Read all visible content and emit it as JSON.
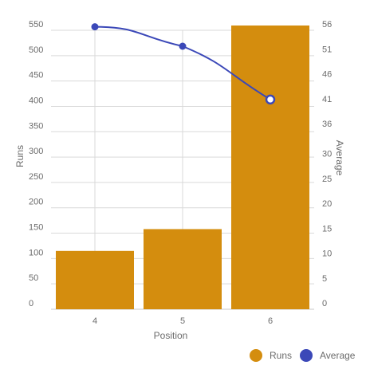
{
  "colors": {
    "runs": "#d48d0e",
    "average": "#3b48b8",
    "grid": "#d9d9d9"
  },
  "chart_data": {
    "type": "bar",
    "categories": [
      "4",
      "5",
      "6"
    ],
    "xlabel": "Position",
    "series": [
      {
        "name": "Runs",
        "type": "bar",
        "axis": "left",
        "values": [
          115,
          158,
          567
        ]
      },
      {
        "name": "Average",
        "type": "line",
        "axis": "right",
        "values": [
          56.7,
          52.8,
          42.1
        ]
      }
    ],
    "y_left": {
      "label": "Runs",
      "ylim": [
        0,
        550
      ],
      "ticks": [
        0,
        50,
        100,
        150,
        200,
        250,
        300,
        350,
        400,
        450,
        500,
        550
      ]
    },
    "y_right": {
      "label": "Average",
      "ylim": [
        0,
        56
      ],
      "ticks": [
        0,
        5,
        10,
        15,
        20,
        25,
        30,
        36,
        41,
        46,
        51,
        56
      ]
    },
    "grid": true,
    "legend": {
      "position": "bottom-right",
      "items": [
        "Runs",
        "Average"
      ]
    }
  }
}
